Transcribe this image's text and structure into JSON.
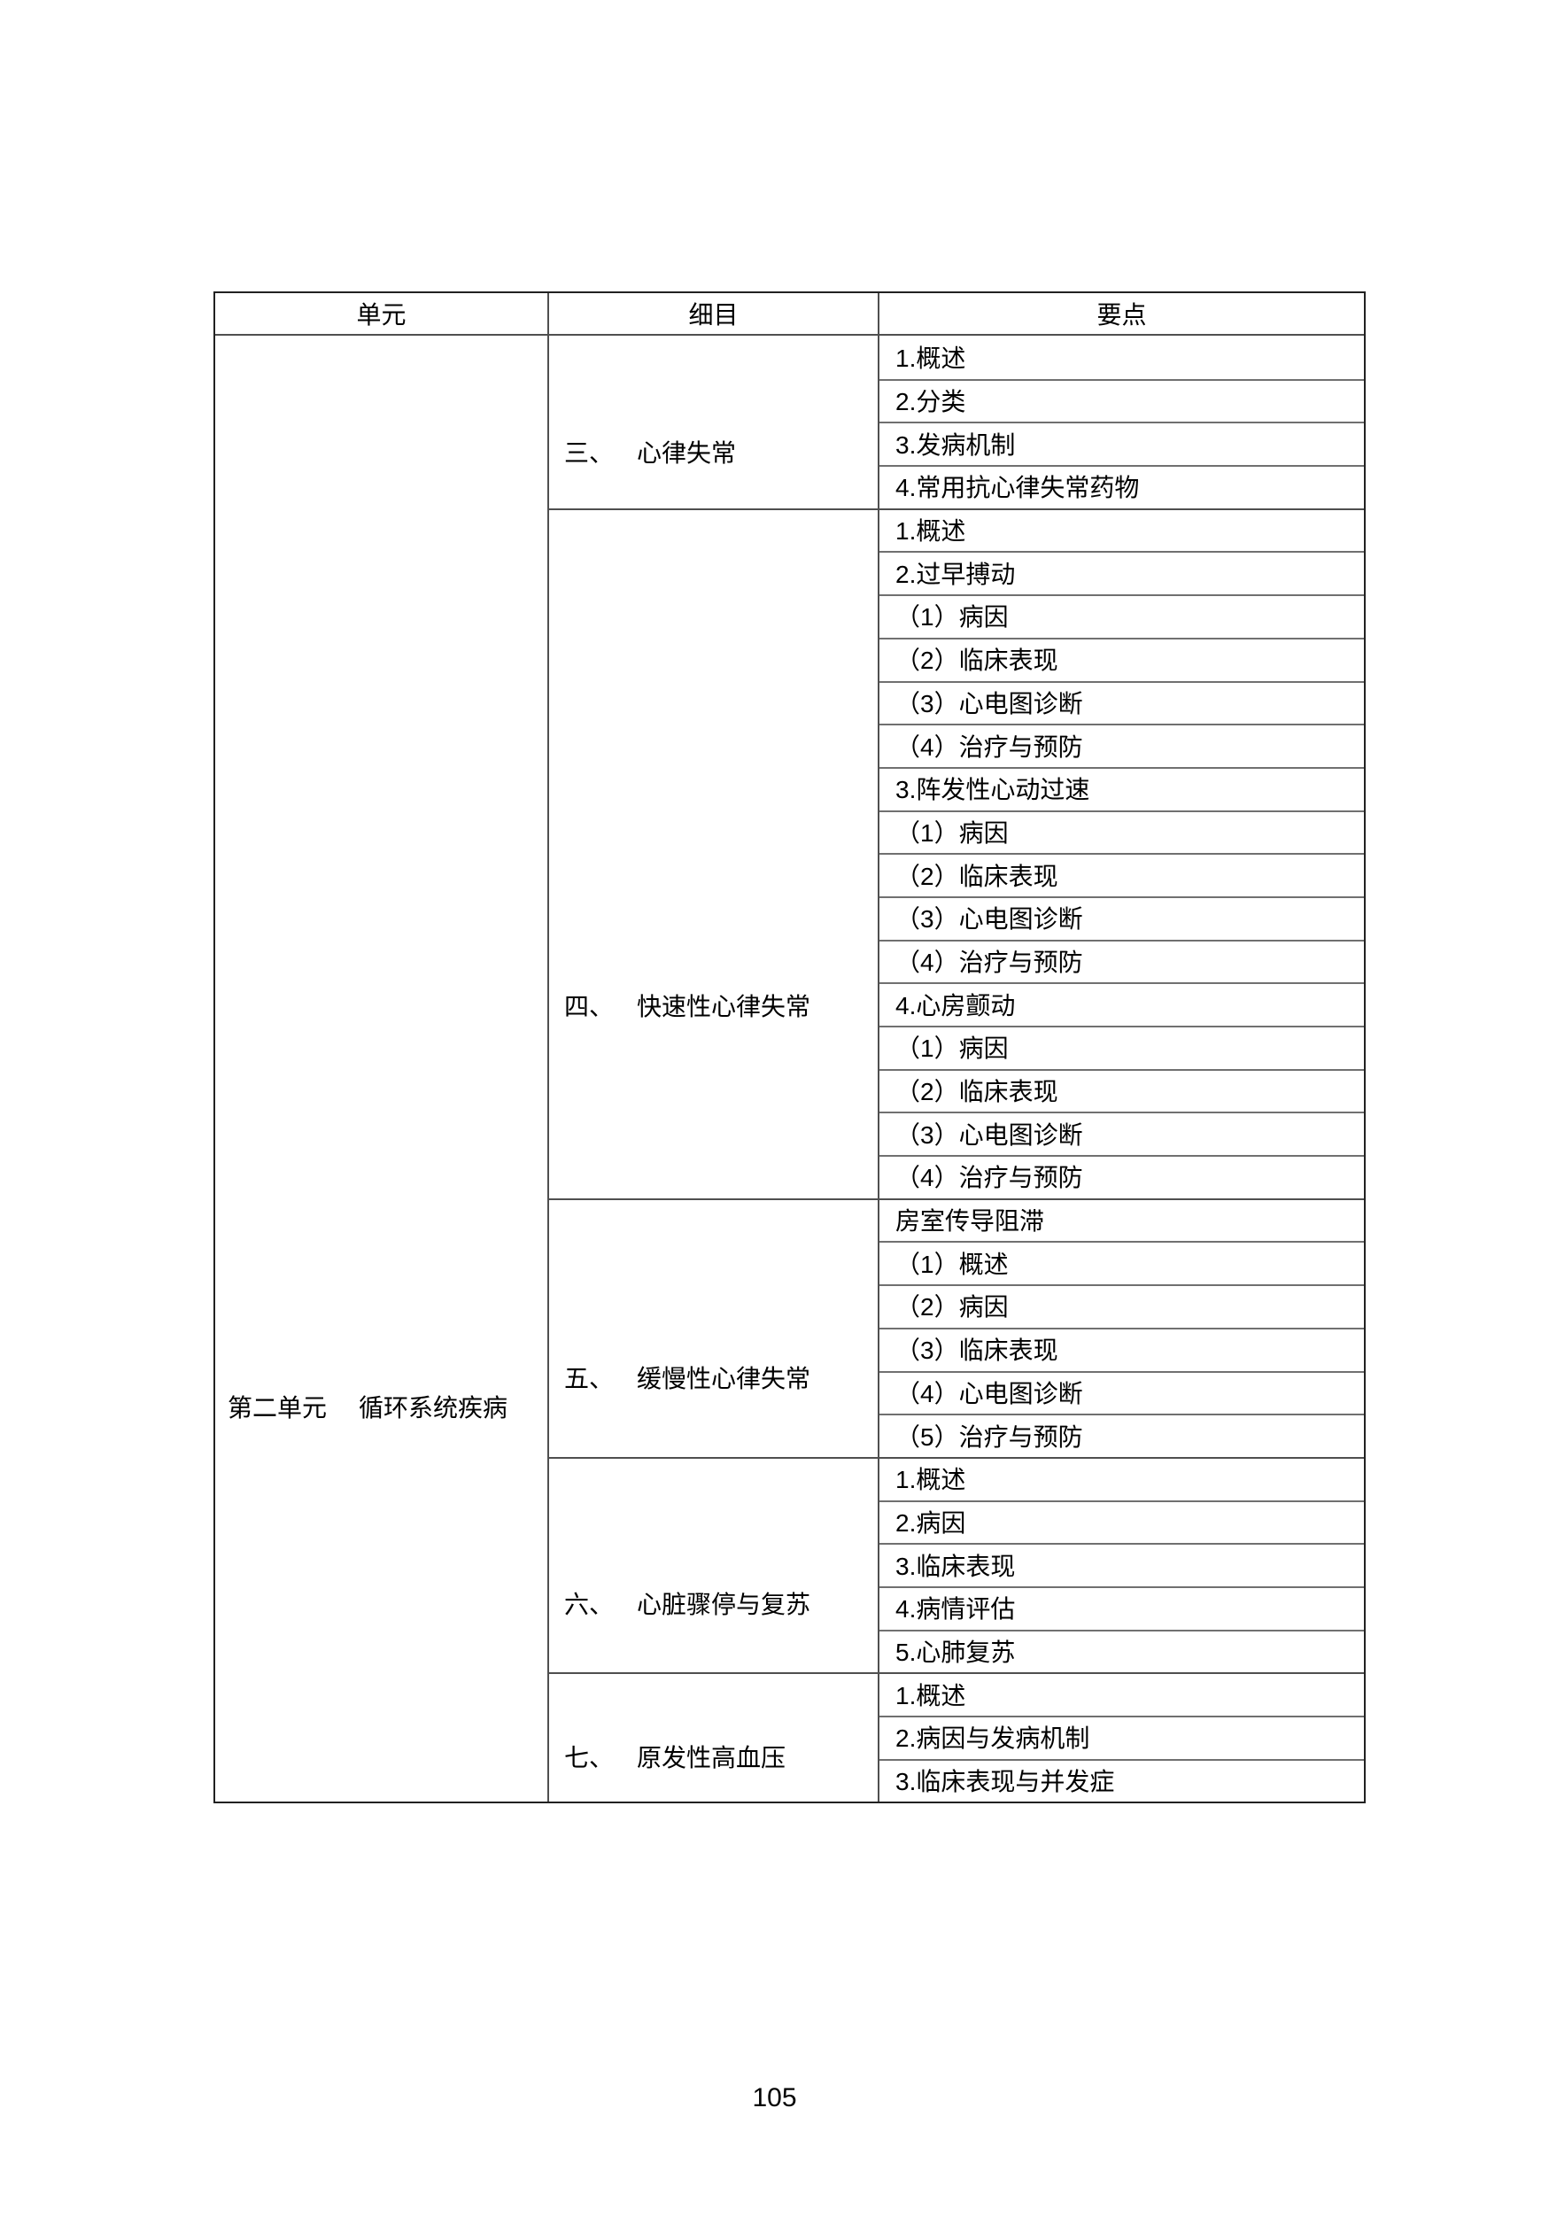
{
  "page": {
    "number": "105"
  },
  "table": {
    "headers": [
      {
        "label": "单元"
      },
      {
        "label": "细目"
      },
      {
        "label": "要点"
      }
    ],
    "unit": {
      "number": "第二单元",
      "name": "循环系统疾病"
    },
    "sections": [
      {
        "number": "三、",
        "title": "心律失常",
        "points": [
          "1.概述",
          "2.分类",
          "3.发病机制",
          "4.常用抗心律失常药物"
        ]
      },
      {
        "number": "四、",
        "title": "快速性心律失常",
        "points": [
          "1.概述",
          "2.过早搏动",
          "（1）病因",
          "（2）临床表现",
          "（3）心电图诊断",
          "（4）治疗与预防",
          "3.阵发性心动过速",
          "（1）病因",
          "（2）临床表现",
          "（3）心电图诊断",
          "（4）治疗与预防",
          "4.心房颤动",
          "（1）病因",
          "（2）临床表现",
          "（3）心电图诊断",
          "（4）治疗与预防"
        ]
      },
      {
        "number": "五、",
        "title": "缓慢性心律失常",
        "points": [
          "房室传导阻滞",
          "（1）概述",
          "（2）病因",
          "（3）临床表现",
          "（4）心电图诊断",
          "（5）治疗与预防"
        ]
      },
      {
        "number": "六、",
        "title": "心脏骤停与复苏",
        "points": [
          "1.概述",
          "2.病因",
          "3.临床表现",
          "4.病情评估",
          "5.心肺复苏"
        ]
      },
      {
        "number": "七、",
        "title": "原发性高血压",
        "points": [
          "1.概述",
          "2.病因与发病机制",
          "3.临床表现与并发症"
        ]
      }
    ]
  }
}
